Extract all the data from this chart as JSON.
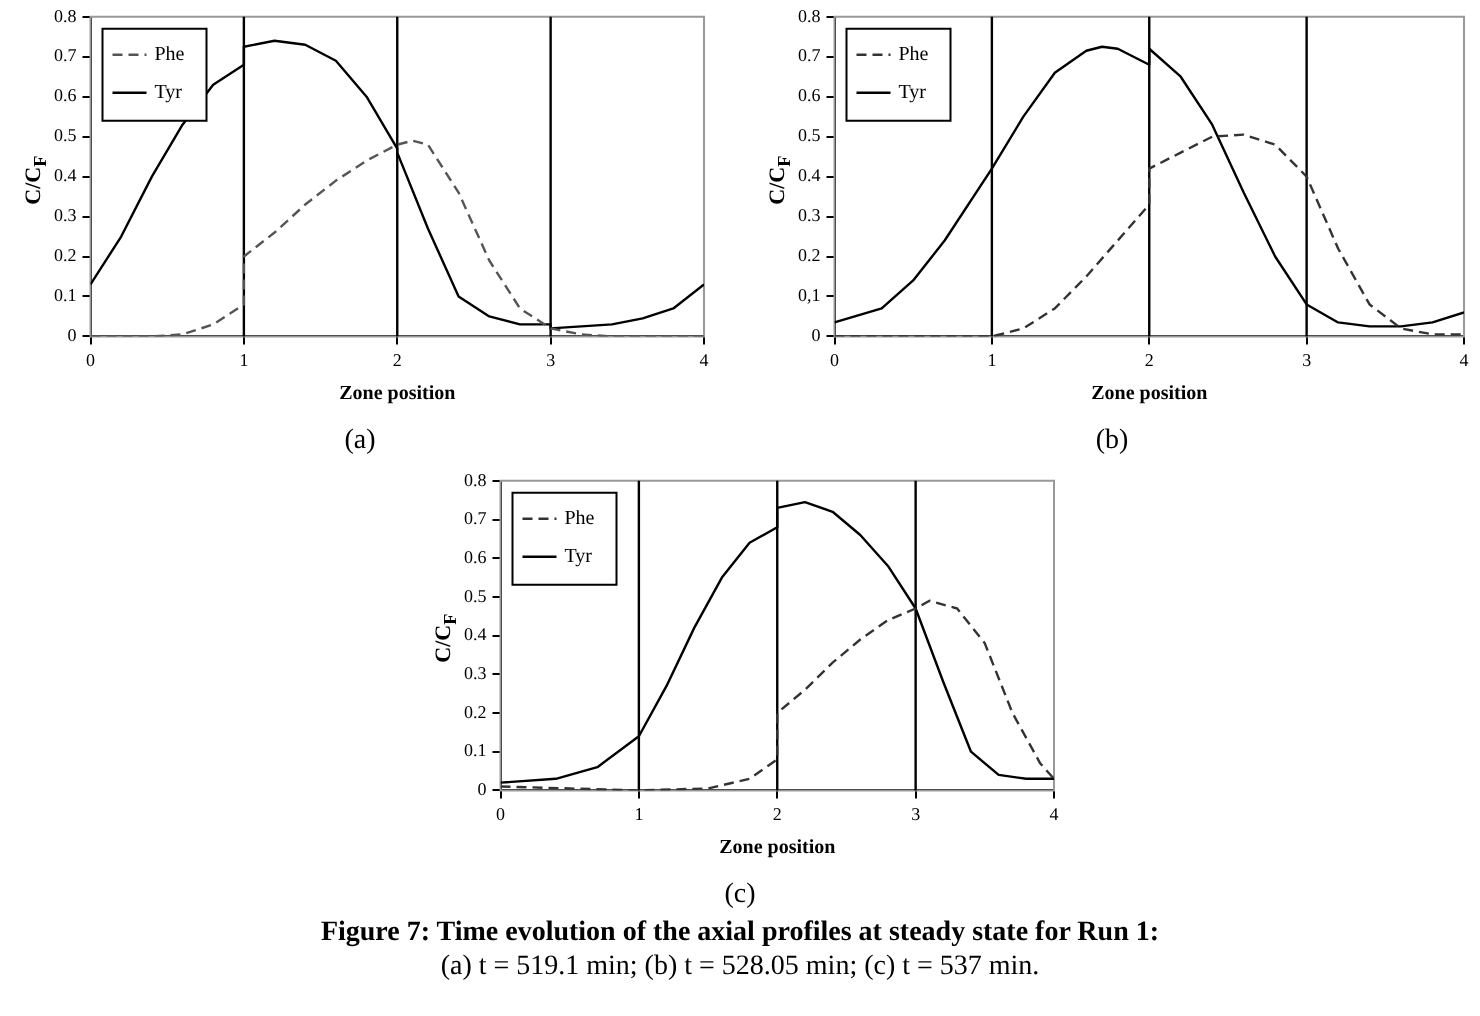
{
  "chart_data": [
    {
      "type": "line",
      "xlabel": "Zone position",
      "ylabel": "C/C$_{F}$",
      "xlim": [
        0,
        4
      ],
      "xticks": [
        0,
        1,
        2,
        3,
        4
      ],
      "ylim": [
        0,
        0.8
      ],
      "yticks": [
        0,
        0.1,
        0.2,
        0.3,
        0.4,
        0.5,
        0.6,
        0.7,
        0.8
      ],
      "legend": "top left",
      "marker": "none",
      "annotations": [
        "(a)"
      ],
      "ref_lines": [
        {
          "axis": "x",
          "value": 1,
          "color": "#000000"
        },
        {
          "axis": "x",
          "value": 2,
          "color": "#000000"
        },
        {
          "axis": "x",
          "value": 3,
          "color": "#000000"
        }
      ],
      "series": [
        {
          "name": "Phe",
          "color": "#555555",
          "line_style": "dashed",
          "x": [
            0,
            0.4,
            0.6,
            0.8,
            1,
            1,
            1.2,
            1.4,
            1.6,
            1.8,
            2,
            2.1,
            2.2,
            2.4,
            2.6,
            2.8,
            3,
            3.2,
            3.4,
            4
          ],
          "values": [
            0,
            0,
            0.005,
            0.03,
            0.08,
            0.2,
            0.26,
            0.33,
            0.39,
            0.44,
            0.48,
            0.49,
            0.48,
            0.36,
            0.19,
            0.07,
            0.02,
            0.005,
            0,
            0
          ]
        },
        {
          "name": "Tyr",
          "color": "#000000",
          "line_style": "solid",
          "x": [
            0,
            0.2,
            0.4,
            0.6,
            0.8,
            1,
            1,
            1.2,
            1.4,
            1.6,
            1.8,
            2,
            2,
            2.2,
            2.4,
            2.6,
            2.8,
            3,
            3,
            3.2,
            3.4,
            3.6,
            3.8,
            4
          ],
          "values": [
            0.13,
            0.25,
            0.4,
            0.53,
            0.63,
            0.68,
            0.725,
            0.74,
            0.73,
            0.69,
            0.6,
            0.47,
            0.46,
            0.27,
            0.1,
            0.05,
            0.03,
            0.03,
            0.02,
            0.025,
            0.03,
            0.045,
            0.07,
            0.13
          ]
        }
      ]
    },
    {
      "type": "line",
      "xlabel": "Zone position",
      "ylabel": "C/C$_{F}$",
      "xlim": [
        0,
        4
      ],
      "xticks": [
        0,
        1,
        2,
        3,
        4
      ],
      "ylim": [
        0,
        0.8
      ],
      "yticks": [
        0,
        {
          "value": 0.1,
          "label": "0,1"
        },
        0.2,
        0.3,
        0.4,
        0.5,
        0.6,
        0.7,
        0.8
      ],
      "legend": "top left",
      "marker": "none",
      "annotations": [
        "(b)"
      ],
      "ref_lines": [
        {
          "axis": "x",
          "value": 1,
          "color": "#000000"
        },
        {
          "axis": "x",
          "value": 2,
          "color": "#000000"
        },
        {
          "axis": "x",
          "value": 3,
          "color": "#000000"
        }
      ],
      "series": [
        {
          "name": "Phe",
          "color": "#333333",
          "line_style": "dashed",
          "x": [
            0,
            1,
            1.2,
            1.4,
            1.6,
            1.8,
            2,
            2,
            2.2,
            2.4,
            2.6,
            2.8,
            3,
            3.2,
            3.4,
            3.6,
            3.8,
            4
          ],
          "values": [
            0,
            0,
            0.02,
            0.07,
            0.15,
            0.24,
            0.33,
            0.42,
            0.46,
            0.5,
            0.505,
            0.48,
            0.4,
            0.22,
            0.08,
            0.02,
            0.005,
            0.005
          ]
        },
        {
          "name": "Tyr",
          "color": "#000000",
          "line_style": "solid",
          "x": [
            0,
            0.3,
            0.5,
            0.7,
            1,
            1.2,
            1.4,
            1.6,
            1.7,
            1.8,
            2,
            2,
            2.2,
            2.4,
            2.6,
            2.8,
            3,
            3.2,
            3.4,
            3.6,
            3.8,
            4
          ],
          "values": [
            0.035,
            0.07,
            0.14,
            0.24,
            0.42,
            0.55,
            0.66,
            0.715,
            0.725,
            0.72,
            0.68,
            0.72,
            0.65,
            0.53,
            0.36,
            0.2,
            0.08,
            0.035,
            0.025,
            0.025,
            0.035,
            0.06
          ]
        }
      ]
    },
    {
      "type": "line",
      "xlabel": "Zone position",
      "ylabel": "C/C$_{F}$",
      "xlim": [
        0,
        4
      ],
      "xticks": [
        0,
        1,
        2,
        3,
        4
      ],
      "ylim": [
        0,
        0.8
      ],
      "yticks": [
        0,
        0.1,
        0.2,
        0.3,
        0.4,
        0.5,
        0.6,
        0.7,
        0.8
      ],
      "legend": "top left",
      "marker": "none",
      "annotations": [
        "(c)",
        "Figure 7: Time evolution of the axial profiles at steady state for Run 1:",
        "(a) t = 519.1 min; (b) t = 528.05 min; (c) t = 537 min."
      ],
      "ref_lines": [
        {
          "axis": "x",
          "value": 1,
          "color": "#000000"
        },
        {
          "axis": "x",
          "value": 2,
          "color": "#000000"
        },
        {
          "axis": "x",
          "value": 3,
          "color": "#000000"
        }
      ],
      "series": [
        {
          "name": "Phe",
          "color": "#333333",
          "line_style": "dashed",
          "x": [
            0,
            0.5,
            1,
            1.5,
            1.8,
            2,
            2,
            2.2,
            2.4,
            2.6,
            2.8,
            3,
            3.1,
            3.3,
            3.5,
            3.7,
            3.9,
            4
          ],
          "values": [
            0.01,
            0.005,
            0,
            0.005,
            0.03,
            0.08,
            0.2,
            0.26,
            0.33,
            0.39,
            0.44,
            0.47,
            0.49,
            0.47,
            0.38,
            0.2,
            0.07,
            0.03
          ]
        },
        {
          "name": "Tyr",
          "color": "#000000",
          "line_style": "solid",
          "x": [
            0,
            0.4,
            0.7,
            1,
            1.2,
            1.4,
            1.6,
            1.8,
            2,
            2,
            2.2,
            2.4,
            2.6,
            2.8,
            3,
            3.2,
            3.4,
            3.6,
            3.8,
            4
          ],
          "values": [
            0.02,
            0.03,
            0.06,
            0.14,
            0.27,
            0.42,
            0.55,
            0.64,
            0.68,
            0.73,
            0.745,
            0.72,
            0.66,
            0.58,
            0.47,
            0.28,
            0.1,
            0.04,
            0.03,
            0.03
          ]
        }
      ]
    }
  ]
}
